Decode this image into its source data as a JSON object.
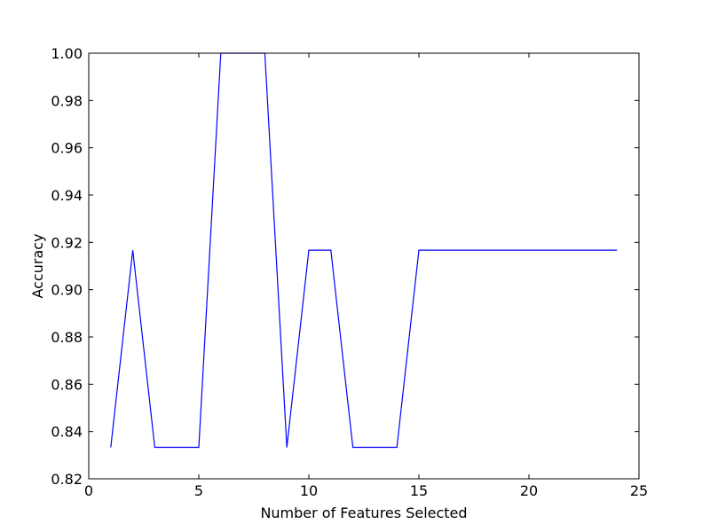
{
  "chart_data": {
    "type": "line",
    "title": "",
    "xlabel": "Number of Features Selected",
    "ylabel": "Accuracy",
    "xlim": [
      0,
      25
    ],
    "ylim": [
      0.82,
      1.0
    ],
    "xticks": [
      0,
      5,
      10,
      15,
      20,
      25
    ],
    "xtick_labels": [
      "0",
      "5",
      "10",
      "15",
      "20",
      "25"
    ],
    "yticks": [
      0.82,
      0.84,
      0.86,
      0.88,
      0.9,
      0.92,
      0.94,
      0.96,
      0.98,
      1.0
    ],
    "ytick_labels": [
      "0.82",
      "0.84",
      "0.86",
      "0.88",
      "0.90",
      "0.92",
      "0.94",
      "0.96",
      "0.98",
      "1.00"
    ],
    "grid": false,
    "series": [
      {
        "color": "#0000ff",
        "x": [
          1,
          2,
          3,
          4,
          5,
          6,
          7,
          8,
          9,
          10,
          11,
          12,
          13,
          14,
          15,
          16,
          17,
          18,
          19,
          20,
          21,
          22,
          23,
          24
        ],
        "y": [
          0.8333,
          0.9167,
          0.8333,
          0.8333,
          0.8333,
          1.0,
          1.0,
          1.0,
          0.8333,
          0.9167,
          0.9167,
          0.8333,
          0.8333,
          0.8333,
          0.9167,
          0.9167,
          0.9167,
          0.9167,
          0.9167,
          0.9167,
          0.9167,
          0.9167,
          0.9167,
          0.9167
        ]
      }
    ]
  }
}
